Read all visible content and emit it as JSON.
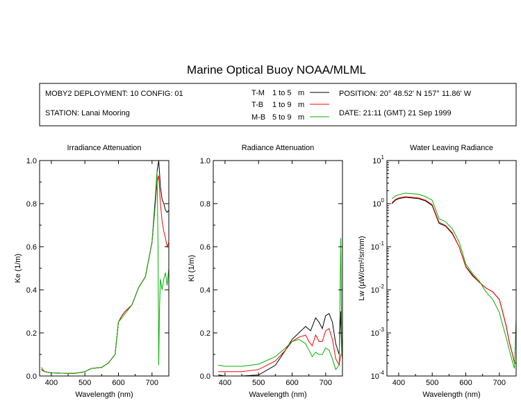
{
  "title": "Marine Optical Buoy NOAA/MLML",
  "info": {
    "deployment": "MOBY2 DEPLOYMENT: 10 CONFIG: 01",
    "station": "STATION: Lanai Mooring",
    "position": "POSITION: 20° 48.52' N   157° 11.86' W",
    "date": "DATE: 21:11 (GMT) 21 Sep 1999",
    "legend": [
      {
        "code": "T-M",
        "range": "1 to 5",
        "unit": "m",
        "color": "#000000"
      },
      {
        "code": "T-B",
        "range": "1 to 9",
        "unit": "m",
        "color": "#ff0000"
      },
      {
        "code": "M-B",
        "range": "5 to 9",
        "unit": "m",
        "color": "#00b000"
      }
    ]
  },
  "chart_data": [
    {
      "type": "line",
      "title": "Irradiance Attenuation",
      "xlabel": "Wavelength (nm)",
      "ylabel": "Ke (1/m)",
      "xlim": [
        365,
        750
      ],
      "ylim": [
        0,
        1.0
      ],
      "xticks": [
        "400",
        "500",
        "600",
        "700"
      ],
      "yticks": [
        "0.0",
        "0.2",
        "0.4",
        "0.6",
        "0.8",
        "1.0"
      ],
      "series": [
        {
          "name": "T-M",
          "color": "#000000",
          "x": [
            370,
            380,
            400,
            430,
            470,
            500,
            520,
            550,
            570,
            590,
            600,
            610,
            620,
            640,
            660,
            680,
            700,
            710,
            715,
            720,
            725,
            730,
            735,
            740,
            745,
            750
          ],
          "y": [
            0.03,
            0.02,
            0.015,
            0.013,
            0.012,
            0.02,
            0.035,
            0.04,
            0.06,
            0.1,
            0.25,
            0.28,
            0.3,
            0.33,
            0.41,
            0.46,
            0.62,
            0.83,
            0.95,
            1.0,
            0.88,
            0.82,
            0.8,
            0.77,
            0.76,
            0.77
          ]
        },
        {
          "name": "T-B",
          "color": "#ff0000",
          "x": [
            370,
            380,
            400,
            430,
            470,
            500,
            520,
            550,
            570,
            590,
            600,
            610,
            620,
            640,
            660,
            680,
            700,
            710,
            715,
            720,
            725,
            730,
            735,
            740,
            745,
            750
          ],
          "y": [
            0.03,
            0.02,
            0.015,
            0.013,
            0.012,
            0.02,
            0.035,
            0.04,
            0.06,
            0.1,
            0.25,
            0.28,
            0.3,
            0.33,
            0.41,
            0.46,
            0.62,
            0.8,
            0.9,
            0.93,
            0.8,
            0.72,
            0.67,
            0.64,
            0.6,
            0.62
          ]
        },
        {
          "name": "M-B",
          "color": "#00b000",
          "x": [
            370,
            380,
            400,
            430,
            470,
            500,
            520,
            550,
            570,
            590,
            600,
            610,
            620,
            640,
            660,
            680,
            700,
            710,
            715,
            718,
            720,
            722,
            725,
            730,
            735,
            740,
            745,
            750
          ],
          "y": [
            0.04,
            0.02,
            0.015,
            0.013,
            0.012,
            0.02,
            0.035,
            0.04,
            0.06,
            0.1,
            0.25,
            0.27,
            0.29,
            0.33,
            0.41,
            0.46,
            0.62,
            0.8,
            0.95,
            0.6,
            0.05,
            0.3,
            0.45,
            0.4,
            0.45,
            0.48,
            0.42,
            0.5
          ]
        }
      ]
    },
    {
      "type": "line",
      "title": "Radiance Attenuation",
      "xlabel": "Wavelength (nm)",
      "ylabel": "Kl (1/m)",
      "xlim": [
        365,
        750
      ],
      "ylim": [
        0,
        1.0
      ],
      "xticks": [
        "400",
        "500",
        "600",
        "700"
      ],
      "yticks": [
        "0.0",
        "0.2",
        "0.4",
        "0.6",
        "0.8",
        "1.0"
      ],
      "series": [
        {
          "name": "T-M",
          "color": "#000000",
          "x": [
            380,
            400,
            450,
            500,
            550,
            580,
            600,
            620,
            640,
            655,
            665,
            670,
            680,
            690,
            700,
            710,
            720,
            730,
            740,
            745,
            748,
            750
          ],
          "y": [
            0.005,
            0.0,
            0.0,
            0.005,
            0.05,
            0.12,
            0.17,
            0.2,
            0.23,
            0.21,
            0.25,
            0.27,
            0.25,
            0.22,
            0.28,
            0.29,
            0.25,
            0.15,
            0.1,
            0.3,
            0.1,
            0.2
          ]
        },
        {
          "name": "T-B",
          "color": "#ff0000",
          "x": [
            380,
            400,
            450,
            500,
            550,
            580,
            600,
            620,
            640,
            650,
            660,
            670,
            680,
            690,
            700,
            710,
            720,
            730,
            740,
            745,
            750
          ],
          "y": [
            0.02,
            0.02,
            0.02,
            0.03,
            0.07,
            0.12,
            0.16,
            0.18,
            0.19,
            0.16,
            0.14,
            0.19,
            0.16,
            0.16,
            0.21,
            0.22,
            0.17,
            0.08,
            0.05,
            0.1,
            0.1
          ]
        },
        {
          "name": "M-B",
          "color": "#00b000",
          "x": [
            380,
            400,
            450,
            500,
            550,
            580,
            600,
            620,
            640,
            650,
            660,
            670,
            680,
            690,
            700,
            710,
            720,
            730,
            740,
            745,
            748,
            750
          ],
          "y": [
            0.05,
            0.045,
            0.045,
            0.055,
            0.09,
            0.13,
            0.16,
            0.17,
            0.15,
            0.12,
            0.09,
            0.11,
            0.1,
            0.1,
            0.13,
            0.12,
            0.08,
            0.03,
            0.05,
            0.64,
            0.1,
            0.08
          ]
        }
      ]
    },
    {
      "type": "line",
      "title": "Water Leaving Radiance",
      "xlabel": "Wavelength (nm)",
      "ylabel": "Lw (µW/cm²/sr/nm)",
      "yscale": "log",
      "xlim": [
        365,
        750
      ],
      "ylim": [
        0.0001,
        10
      ],
      "xticks": [
        "400",
        "500",
        "600",
        "700"
      ],
      "yticks": [
        "10^-4",
        "10^-3",
        "10^-2",
        "10^-1",
        "10^0",
        "10^1"
      ],
      "series": [
        {
          "name": "T-M",
          "color": "#000000",
          "x": [
            380,
            390,
            400,
            420,
            440,
            460,
            480,
            500,
            520,
            540,
            560,
            580,
            600,
            620,
            640,
            660,
            680,
            700,
            710,
            720,
            730,
            740,
            745,
            750
          ],
          "y": [
            1.0,
            1.2,
            1.3,
            1.4,
            1.35,
            1.3,
            1.15,
            0.9,
            0.35,
            0.3,
            0.2,
            0.1,
            0.035,
            0.022,
            0.015,
            0.011,
            0.009,
            0.006,
            0.003,
            0.0015,
            0.0006,
            0.0003,
            0.0002,
            0.0002
          ]
        },
        {
          "name": "T-B",
          "color": "#ff0000",
          "x": [
            380,
            390,
            400,
            420,
            440,
            460,
            480,
            500,
            520,
            540,
            560,
            580,
            600,
            620,
            640,
            660,
            680,
            700,
            710,
            720,
            730,
            740,
            745,
            750
          ],
          "y": [
            1.05,
            1.25,
            1.35,
            1.45,
            1.4,
            1.35,
            1.2,
            0.95,
            0.37,
            0.31,
            0.21,
            0.1,
            0.034,
            0.021,
            0.015,
            0.011,
            0.009,
            0.006,
            0.003,
            0.0015,
            0.0006,
            0.0003,
            0.0002,
            0.0002
          ]
        },
        {
          "name": "M-B",
          "color": "#00b000",
          "x": [
            380,
            390,
            400,
            420,
            440,
            460,
            480,
            500,
            520,
            540,
            560,
            580,
            600,
            620,
            640,
            660,
            680,
            700,
            710,
            720,
            730,
            740,
            745,
            750
          ],
          "y": [
            1.3,
            1.5,
            1.6,
            1.75,
            1.7,
            1.65,
            1.45,
            1.2,
            0.45,
            0.38,
            0.26,
            0.13,
            0.04,
            0.024,
            0.016,
            0.009,
            0.006,
            0.003,
            0.0015,
            0.0008,
            0.0004,
            0.0002,
            0.00015,
            0.0022
          ]
        }
      ]
    }
  ]
}
